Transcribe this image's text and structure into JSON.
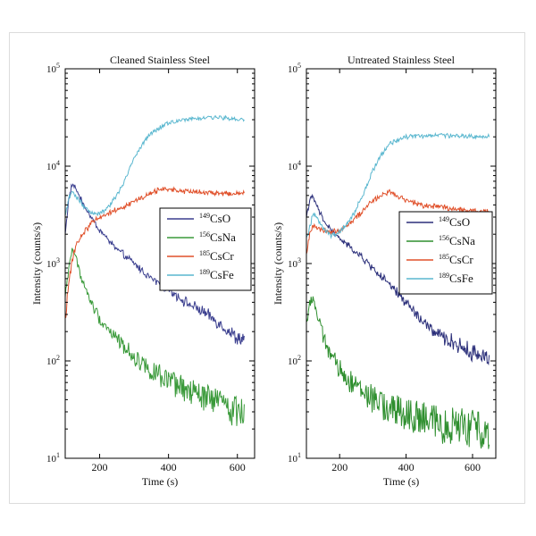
{
  "chart_data": [
    {
      "type": "line",
      "title": "Cleaned Stainless Steel",
      "xlabel": "Time (s)",
      "ylabel": "Intensity (counts/s)",
      "yscale": "log",
      "xlim": [
        100,
        650
      ],
      "ylim": [
        10,
        100000
      ],
      "xticks": [
        200,
        400,
        600
      ],
      "xtick_labels": [
        "200",
        "400",
        "600"
      ],
      "yticks": [
        10,
        100,
        1000,
        10000,
        100000
      ],
      "ytick_labels": [
        {
          "base": "10",
          "exp": "1"
        },
        {
          "base": "10",
          "exp": "2"
        },
        {
          "base": "10",
          "exp": "3"
        },
        {
          "base": "10",
          "exp": "4"
        },
        {
          "base": "10",
          "exp": "5"
        }
      ],
      "legend_position": "center-right",
      "series": [
        {
          "name": "CsO",
          "mass": "149",
          "color": "#3b3f8f",
          "x": [
            100,
            110,
            120,
            130,
            150,
            175,
            200,
            250,
            300,
            350,
            400,
            450,
            500,
            550,
            600,
            620
          ],
          "y": [
            2000,
            4500,
            6500,
            6000,
            4200,
            3000,
            2200,
            1400,
            1000,
            700,
            550,
            400,
            320,
            240,
            170,
            170
          ]
        },
        {
          "name": "CsNa",
          "mass": "156",
          "color": "#3a9a3a",
          "x": [
            100,
            110,
            120,
            130,
            150,
            175,
            200,
            250,
            300,
            350,
            400,
            450,
            500,
            550,
            600,
            620
          ],
          "y": [
            450,
            900,
            1400,
            1200,
            650,
            400,
            270,
            170,
            110,
            80,
            60,
            50,
            42,
            38,
            30,
            33
          ]
        },
        {
          "name": "CsCr",
          "mass": "185",
          "color": "#e0502a",
          "x": [
            100,
            110,
            120,
            130,
            150,
            175,
            200,
            250,
            300,
            350,
            380,
            400,
            450,
            500,
            550,
            600,
            620
          ],
          "y": [
            250,
            600,
            1100,
            1500,
            2000,
            2600,
            3000,
            3600,
            4300,
            5300,
            5800,
            5800,
            5500,
            5400,
            5200,
            5200,
            5300
          ]
        },
        {
          "name": "CsFe",
          "mass": "189",
          "color": "#5ab7cf",
          "x": [
            100,
            110,
            120,
            130,
            150,
            175,
            200,
            225,
            250,
            275,
            300,
            325,
            350,
            400,
            450,
            500,
            550,
            600,
            620
          ],
          "y": [
            3000,
            4500,
            5500,
            5000,
            4000,
            3400,
            3300,
            3800,
            5000,
            7500,
            12000,
            17000,
            22000,
            28000,
            30000,
            31000,
            31500,
            30500,
            30000
          ]
        }
      ]
    },
    {
      "type": "line",
      "title": "Untreated Stainless Steel",
      "xlabel": "Time (s)",
      "ylabel": "Intensity (counts/s)",
      "yscale": "log",
      "xlim": [
        100,
        670
      ],
      "ylim": [
        10,
        100000
      ],
      "xticks": [
        200,
        400,
        600
      ],
      "xtick_labels": [
        "200",
        "400",
        "600"
      ],
      "yticks": [
        10,
        100,
        1000,
        10000,
        100000
      ],
      "ytick_labels": [
        {
          "base": "10",
          "exp": "1"
        },
        {
          "base": "10",
          "exp": "2"
        },
        {
          "base": "10",
          "exp": "3"
        },
        {
          "base": "10",
          "exp": "4"
        },
        {
          "base": "10",
          "exp": "5"
        }
      ],
      "legend_position": "center-right",
      "series": [
        {
          "name": "CsO",
          "mass": "149",
          "color": "#2b2f7a",
          "x": [
            100,
            110,
            120,
            130,
            150,
            175,
            200,
            250,
            300,
            350,
            400,
            450,
            500,
            550,
            600,
            650
          ],
          "y": [
            3000,
            4500,
            4800,
            4000,
            2800,
            2200,
            1800,
            1300,
            900,
            600,
            400,
            250,
            180,
            150,
            120,
            110
          ]
        },
        {
          "name": "CsNa",
          "mass": "156",
          "color": "#2f8f2f",
          "x": [
            100,
            110,
            120,
            130,
            150,
            175,
            200,
            250,
            300,
            350,
            400,
            450,
            500,
            550,
            600,
            650
          ],
          "y": [
            250,
            400,
            450,
            320,
            180,
            110,
            80,
            55,
            40,
            32,
            28,
            25,
            22,
            22,
            20,
            20
          ]
        },
        {
          "name": "CsCr",
          "mass": "185",
          "color": "#e0502a",
          "x": [
            100,
            110,
            120,
            130,
            150,
            175,
            200,
            250,
            300,
            325,
            350,
            375,
            400,
            450,
            500,
            550,
            600,
            650
          ],
          "y": [
            1200,
            2000,
            2500,
            2400,
            2200,
            2100,
            2200,
            3000,
            4400,
            5000,
            5500,
            5000,
            4500,
            4000,
            3800,
            3600,
            3500,
            3400
          ]
        },
        {
          "name": "CsFe",
          "mass": "189",
          "color": "#5ab7cf",
          "x": [
            100,
            110,
            120,
            130,
            150,
            175,
            200,
            225,
            250,
            275,
            300,
            325,
            350,
            400,
            450,
            500,
            550,
            600,
            650
          ],
          "y": [
            1800,
            2300,
            3300,
            3000,
            2300,
            2000,
            2100,
            2600,
            3600,
            5500,
            9000,
            13000,
            17000,
            20000,
            20500,
            21000,
            20500,
            20000,
            20000
          ]
        }
      ]
    }
  ]
}
